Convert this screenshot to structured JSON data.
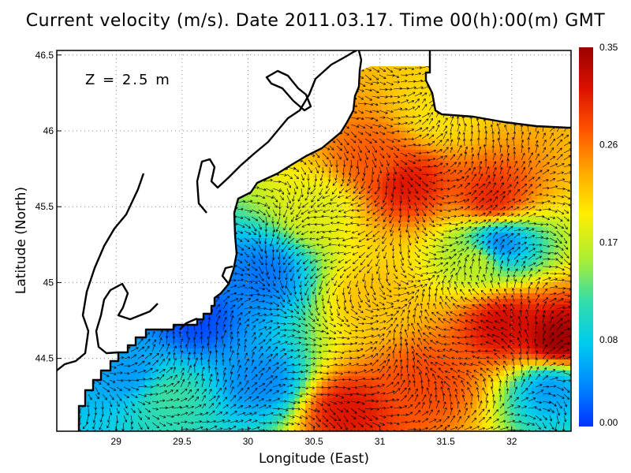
{
  "chart_data": {
    "type": "heatmap",
    "title": "Current velocity (m/s). Date 2011.03.17. Time 00(h):00(m) GMT",
    "annotation": "Z = 2.5 m",
    "xlabel": "Longitude (East)",
    "ylabel": "Latitude (North)",
    "xlim": [
      28.55,
      32.45
    ],
    "ylim": [
      44.02,
      46.53
    ],
    "x_ticks": [
      "29",
      "29.5",
      "30",
      "30.5",
      "31",
      "31.5",
      "32"
    ],
    "x_tick_values": [
      29,
      29.5,
      30,
      30.5,
      31,
      31.5,
      32
    ],
    "y_ticks": [
      "44.5",
      "45",
      "45.5",
      "46",
      "46.5"
    ],
    "y_tick_values": [
      44.5,
      45,
      45.5,
      46,
      46.5
    ],
    "grid": true,
    "colorbar": {
      "min": 0.0,
      "max": 0.35,
      "tick_labels": [
        "0.00",
        "0.08",
        "0.17",
        "0.26",
        "0.35"
      ],
      "tick_values": [
        0.0,
        0.08,
        0.17,
        0.26,
        0.35
      ],
      "colormap": [
        "#0033ff",
        "#0088ff",
        "#00ccee",
        "#33ddaa",
        "#aaee33",
        "#ffee00",
        "#ffaa00",
        "#ff5500",
        "#dd1100",
        "#990000"
      ]
    },
    "speed_hotspots": [
      {
        "lon": 31.2,
        "lat": 45.65,
        "speed": 0.31
      },
      {
        "lon": 31.85,
        "lat": 45.55,
        "speed": 0.3
      },
      {
        "lon": 30.95,
        "lat": 45.8,
        "speed": 0.27
      },
      {
        "lon": 32.35,
        "lat": 44.62,
        "speed": 0.35
      },
      {
        "lon": 31.95,
        "lat": 44.72,
        "speed": 0.32
      },
      {
        "lon": 30.75,
        "lat": 44.15,
        "speed": 0.31
      },
      {
        "lon": 31.35,
        "lat": 44.35,
        "speed": 0.28
      },
      {
        "lon": 30.95,
        "lat": 44.9,
        "speed": 0.22
      },
      {
        "lon": 30.55,
        "lat": 45.5,
        "speed": 0.18
      },
      {
        "lon": 31.75,
        "lat": 45.15,
        "speed": 0.17
      },
      {
        "lon": 31.45,
        "lat": 46.1,
        "speed": 0.2
      },
      {
        "lon": 29.4,
        "lat": 44.25,
        "speed": 0.12
      }
    ],
    "speed_lows": [
      {
        "lon": 29.6,
        "lat": 44.75,
        "speed": 0.01
      },
      {
        "lon": 30.1,
        "lat": 45.05,
        "speed": 0.03
      },
      {
        "lon": 31.9,
        "lat": 45.25,
        "speed": 0.03
      },
      {
        "lon": 32.3,
        "lat": 44.3,
        "speed": 0.05
      },
      {
        "lon": 30.1,
        "lat": 44.35,
        "speed": 0.04
      },
      {
        "lon": 29.1,
        "lat": 44.4,
        "speed": 0.05
      }
    ],
    "colors": {
      "land": "#ffffff",
      "coastline": "#000000",
      "arrows": "#000000",
      "grid": "#888888"
    }
  }
}
